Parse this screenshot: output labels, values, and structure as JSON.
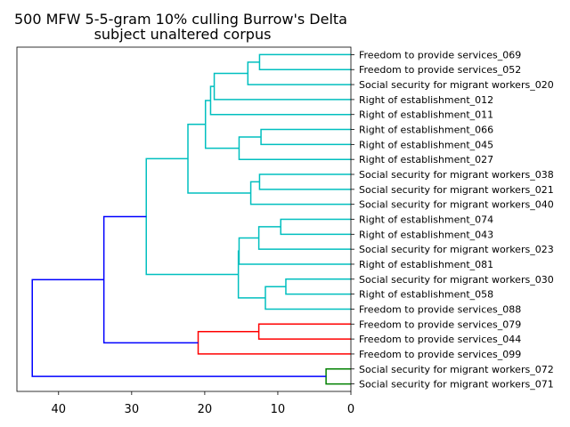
{
  "chart_data": {
    "type": "dendrogram",
    "title": [
      "500 MFW 5-5-gram 10% culling Burrow's Delta",
      "subject unaltered corpus"
    ],
    "orientation": "left",
    "xlim": [
      45.7,
      0
    ],
    "xticks": [
      40,
      30,
      20,
      10,
      0
    ],
    "leaves": [
      "Freedom to provide services_069",
      "Freedom to provide services_052",
      "Social security for migrant workers_020",
      "Right of establishment_012",
      "Right of establishment_011",
      "Right of establishment_066",
      "Right of establishment_045",
      "Right of establishment_027",
      "Social security for migrant workers_038",
      "Social security for migrant workers_021",
      "Social security for migrant workers_040",
      "Right of establishment_074",
      "Right of establishment_043",
      "Social security for migrant workers_023",
      "Right of establishment_081",
      "Social security for migrant workers_030",
      "Right of establishment_058",
      "Freedom to provide services_088",
      "Freedom to provide services_079",
      "Freedom to provide services_044",
      "Freedom to provide services_099",
      "Social security for migrant workers_072",
      "Social security for migrant workers_071"
    ],
    "colors": {
      "cyan": "#00bfbf",
      "red": "#ff0000",
      "green": "#008000",
      "blue": "#0000ff"
    },
    "merges": [
      {
        "a": 0,
        "b": 1,
        "h": 12.5,
        "color": "cyan"
      },
      {
        "a": 23,
        "b": 2,
        "h": 14.1,
        "color": "cyan"
      },
      {
        "a": 24,
        "b": 3,
        "h": 18.7,
        "color": "cyan"
      },
      {
        "a": 25,
        "b": 4,
        "h": 19.2,
        "color": "cyan"
      },
      {
        "a": 5,
        "b": 6,
        "h": 12.3,
        "color": "cyan"
      },
      {
        "a": 27,
        "b": 7,
        "h": 15.3,
        "color": "cyan"
      },
      {
        "a": 26,
        "b": 28,
        "h": 19.9,
        "color": "cyan"
      },
      {
        "a": 8,
        "b": 9,
        "h": 12.5,
        "color": "cyan"
      },
      {
        "a": 30,
        "b": 10,
        "h": 13.7,
        "color": "cyan"
      },
      {
        "a": 29,
        "b": 31,
        "h": 22.3,
        "color": "cyan"
      },
      {
        "a": 11,
        "b": 12,
        "h": 9.6,
        "color": "cyan"
      },
      {
        "a": 33,
        "b": 13,
        "h": 12.6,
        "color": "cyan"
      },
      {
        "a": 34,
        "b": 14,
        "h": 15.3,
        "color": "cyan"
      },
      {
        "a": 15,
        "b": 16,
        "h": 8.9,
        "color": "cyan"
      },
      {
        "a": 36,
        "b": 17,
        "h": 11.7,
        "color": "cyan"
      },
      {
        "a": 35,
        "b": 37,
        "h": 15.4,
        "color": "cyan"
      },
      {
        "a": 32,
        "b": 38,
        "h": 28.0,
        "color": "cyan"
      },
      {
        "a": 18,
        "b": 19,
        "h": 12.6,
        "color": "red"
      },
      {
        "a": 40,
        "b": 20,
        "h": 20.9,
        "color": "red"
      },
      {
        "a": 39,
        "b": 41,
        "h": 33.8,
        "color": "blue"
      },
      {
        "a": 21,
        "b": 22,
        "h": 3.4,
        "color": "green"
      },
      {
        "a": 42,
        "b": 43,
        "h": 43.6,
        "color": "blue"
      }
    ]
  }
}
